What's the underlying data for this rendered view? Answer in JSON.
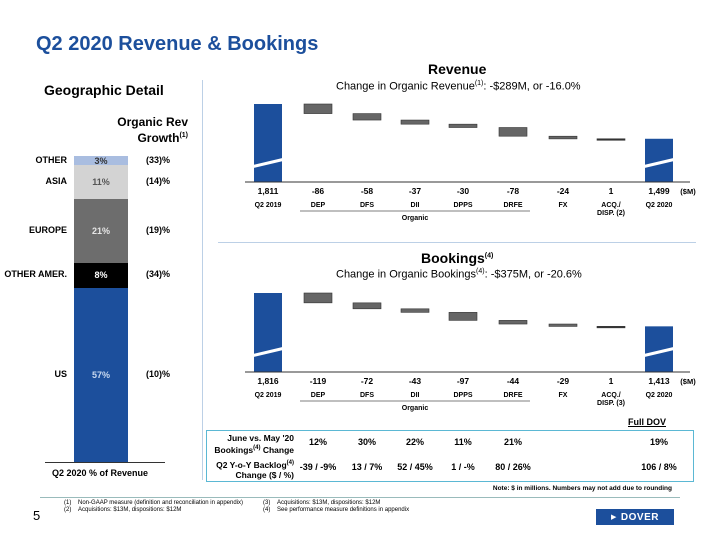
{
  "title": "Q2 2020 Revenue & Bookings",
  "geo": {
    "title": "Geographic Detail",
    "header_line1": "Organic Rev",
    "header_line2": "Growth",
    "header_sup": "(1)",
    "caption": "Q2 2020 % of Revenue",
    "segments": [
      {
        "label": "US",
        "pct_text": "57%",
        "share": 57,
        "growth": "(10)%",
        "color": "#1c4f9c",
        "text_color": "#c9d9f0"
      },
      {
        "label": "OTHER AMER.",
        "pct_text": "8%",
        "share": 8,
        "growth": "(34)%",
        "color": "#000000",
        "text_color": "#ffffff"
      },
      {
        "label": "EUROPE",
        "pct_text": "21%",
        "share": 21,
        "growth": "(19)%",
        "color": "#6d6d6d",
        "text_color": "#e6e6e6"
      },
      {
        "label": "ASIA",
        "pct_text": "11%",
        "share": 11,
        "growth": "(14)%",
        "color": "#d3d3d3",
        "text_color": "#555555"
      },
      {
        "label": "OTHER",
        "pct_text": "3%",
        "share": 3,
        "growth": "(33)%",
        "color": "#a9bde0",
        "text_color": "#333333"
      }
    ]
  },
  "revenue": {
    "title": "Revenue",
    "subtitle_pre": "Change in Organic Revenue",
    "subtitle_sup": "(1)",
    "subtitle_post": ": -$289M, or -16.0%"
  },
  "bookings": {
    "title": "Bookings",
    "title_sup": "(4)",
    "subtitle_pre": "Change in Organic Bookings",
    "subtitle_sup": "(4)",
    "subtitle_post": ": -$375M, or -20.6%"
  },
  "chart_data": [
    {
      "type": "bar",
      "subtype": "waterfall",
      "unit": "($M)",
      "categories": [
        "Q2 2019",
        "DEP",
        "DFS",
        "DII",
        "DPPS",
        "DRFE",
        "FX",
        "ACQ./ DISP. (2)",
        "Q2 2020"
      ],
      "values": [
        1811,
        -86,
        -58,
        -37,
        -30,
        -78,
        -24,
        1,
        1499
      ],
      "value_labels": [
        "1,811",
        "-86",
        "-58",
        "-37",
        "-30",
        "-78",
        "-24",
        "1",
        "1,499"
      ],
      "group_label": "Organic"
    },
    {
      "type": "bar",
      "subtype": "waterfall",
      "unit": "($M)",
      "categories": [
        "Q2 2019",
        "DEP",
        "DFS",
        "DII",
        "DPPS",
        "DRFE",
        "FX",
        "ACQ./ DISP. (3)",
        "Q2 2020"
      ],
      "values": [
        1816,
        -119,
        -72,
        -43,
        -97,
        -44,
        -29,
        1,
        1413
      ],
      "value_labels": [
        "1,816",
        "-119",
        "-72",
        "-43",
        "-97",
        "-44",
        "-29",
        "1",
        "1,413"
      ],
      "group_label": "Organic"
    }
  ],
  "table": {
    "full_dov_label": "Full DOV",
    "row1_label_a": "June vs. May '20",
    "row1_label_b": "Bookings",
    "row1_label_sup": "(4)",
    "row1_label_c": " Change",
    "row1": [
      "12%",
      "30%",
      "22%",
      "11%",
      "21%",
      "19%"
    ],
    "row2_label_a": "Q2 Y-o-Y Backlog",
    "row2_label_sup": "(4)",
    "row2_label_b": "Change ($ / %)",
    "row2": [
      "-39 / -9%",
      "13 / 7%",
      "52 / 45%",
      "1 / -%",
      "80 / 26%",
      "106 / 8%"
    ]
  },
  "note": "Note: $ in millions. Numbers may not add due to rounding",
  "footnotes": [
    {
      "num": "(1)",
      "text": "Non-GAAP measure (definition and reconciliation in appendix)"
    },
    {
      "num": "(2)",
      "text": "Acquisitions: $13M, dispositions: $12M"
    },
    {
      "num": "(3)",
      "text": "Acquisitions: $13M, dispositions: $12M"
    },
    {
      "num": "(4)",
      "text": "See performance measure definitions in appendix"
    }
  ],
  "page_number": "5",
  "logo_text": "DOVER"
}
